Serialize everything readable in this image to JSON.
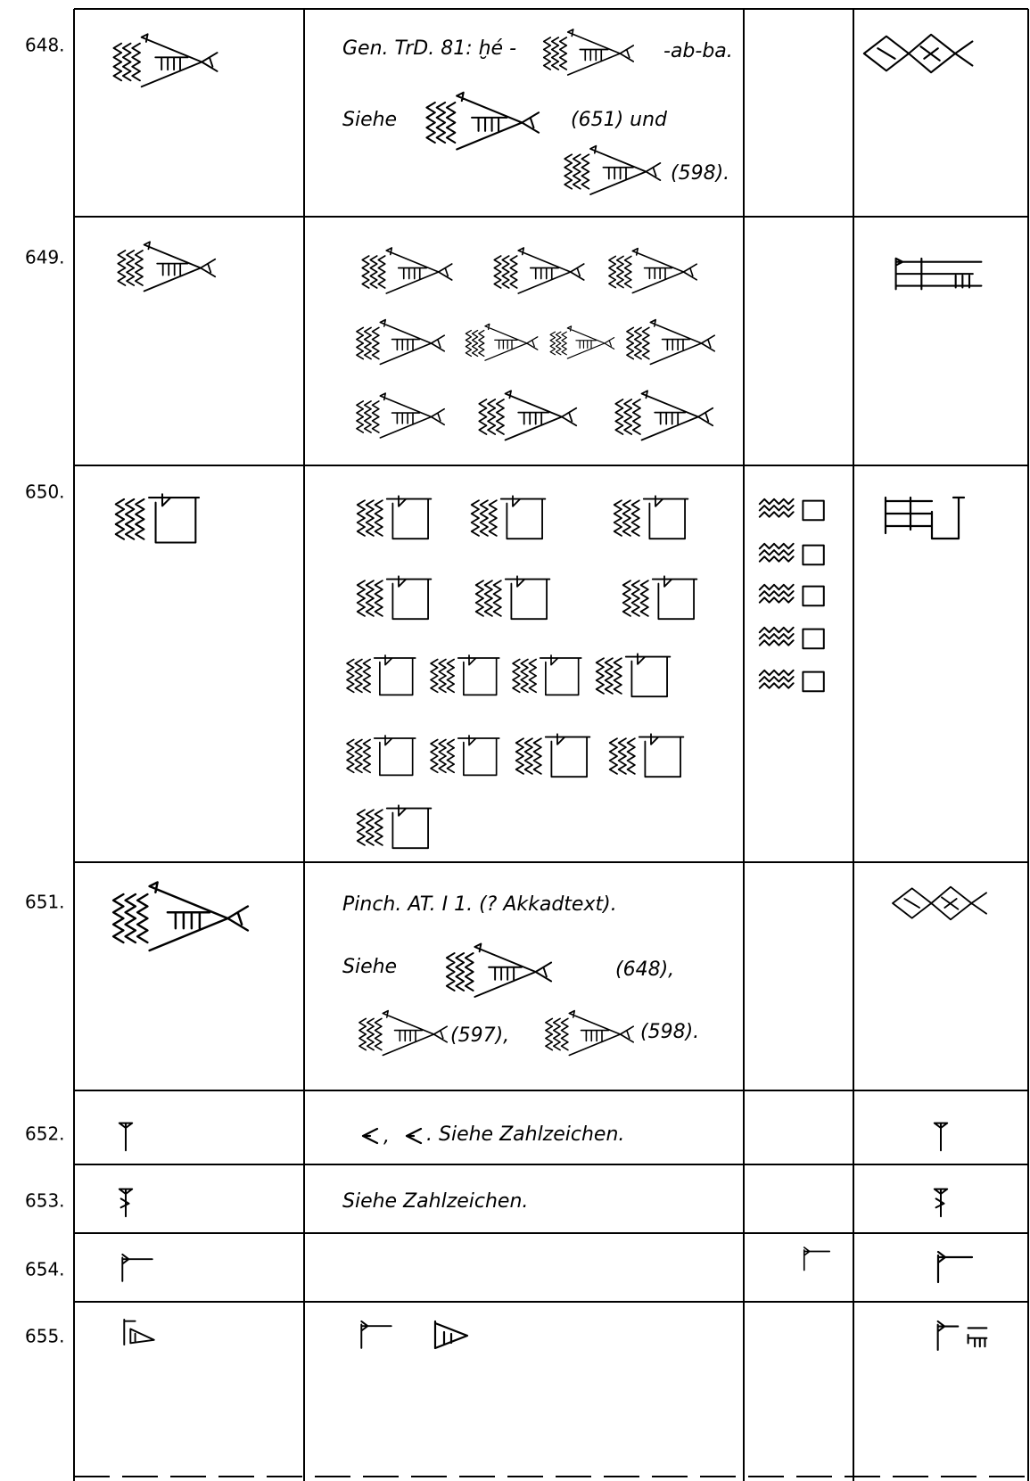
{
  "rows": [
    {
      "number": "648.",
      "text": [
        "Gen. TrD. 81: ḫé -",
        "-ab-ba.",
        "Siehe",
        "(651) und",
        "(598)."
      ]
    },
    {
      "number": "649."
    },
    {
      "number": "650."
    },
    {
      "number": "651.",
      "text": [
        "Pinch. AT. I 1. (? Akkadtext).",
        "Siehe",
        "(648),",
        "(597),",
        "(598)."
      ]
    },
    {
      "number": "652.",
      "text": [
        ",",
        ". Siehe Zahlzeichen."
      ]
    },
    {
      "number": "653.",
      "text": [
        "Siehe Zahlzeichen."
      ]
    },
    {
      "number": "654."
    },
    {
      "number": "655."
    }
  ]
}
